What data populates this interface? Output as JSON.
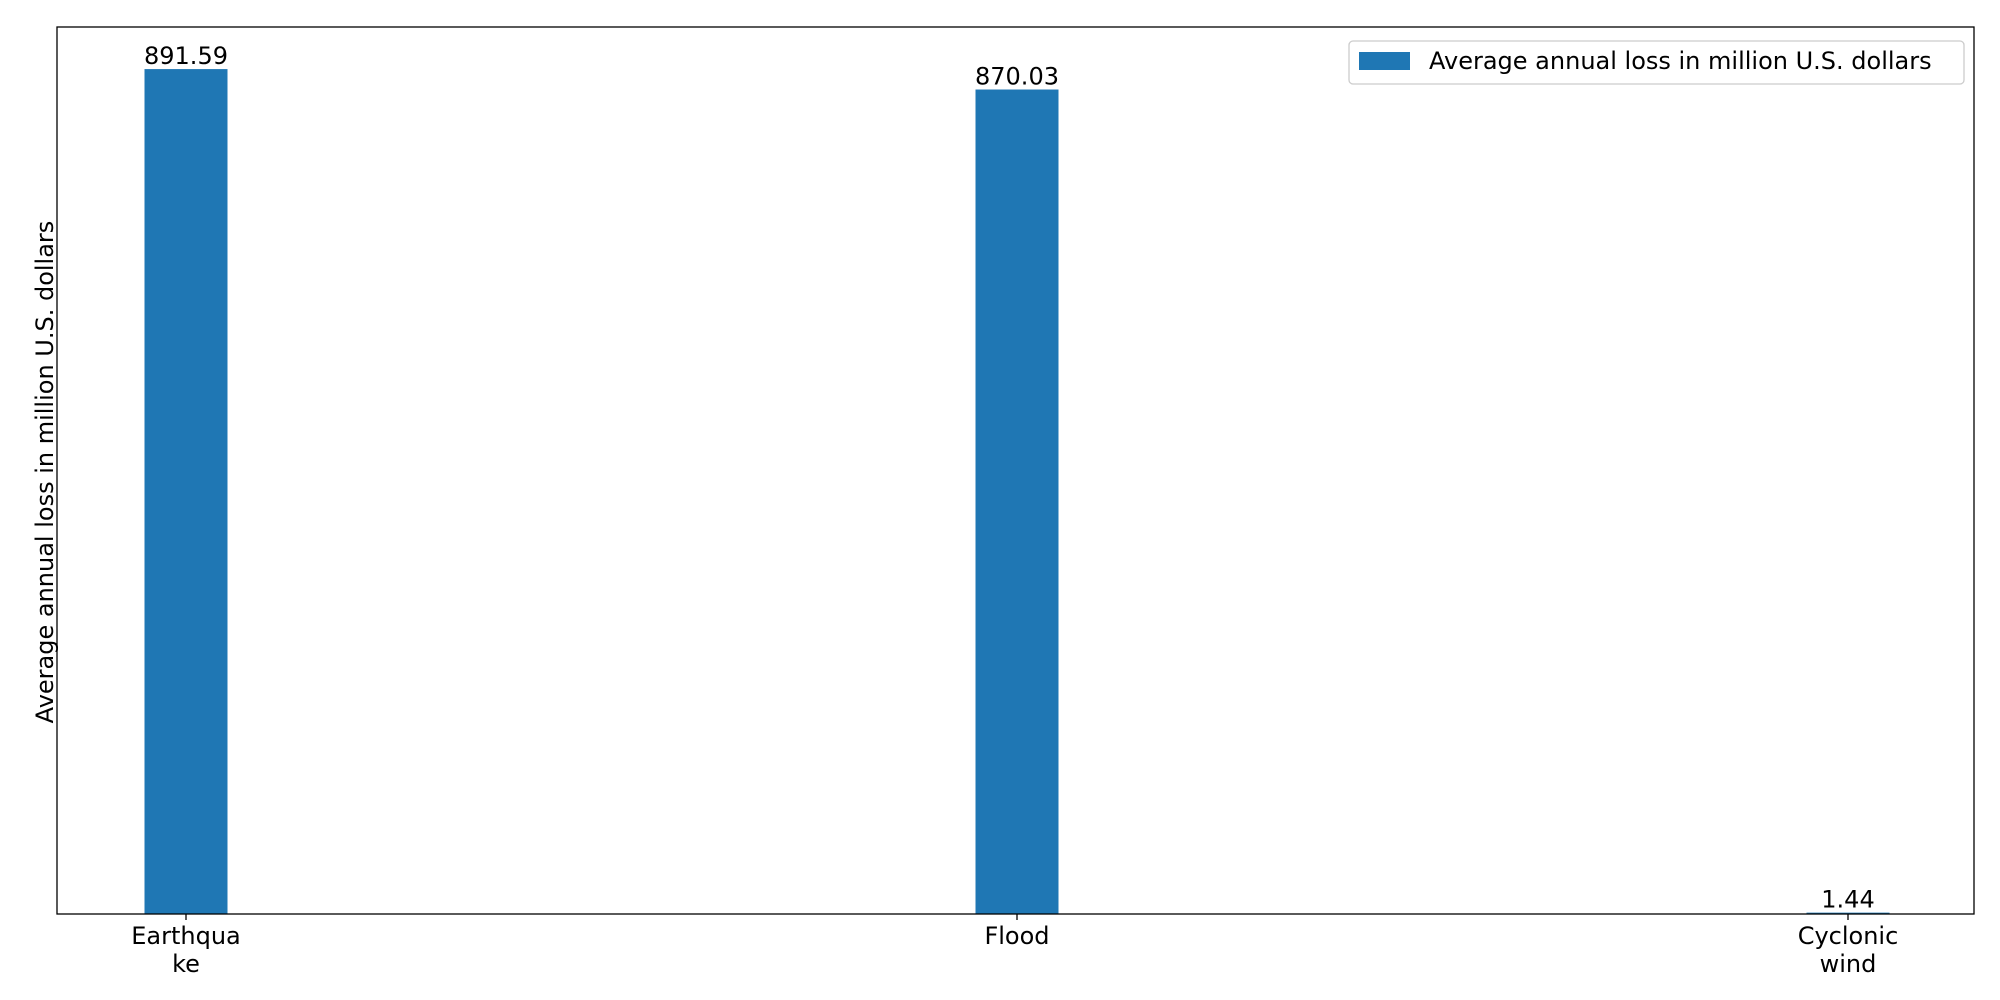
{
  "chart_data": {
    "type": "bar",
    "categories": [
      [
        "Earthqua",
        "ke"
      ],
      [
        "Flood"
      ],
      [
        "Cyclonic",
        "wind"
      ]
    ],
    "series": [
      {
        "name": "Average annual loss in million U.S. dollars",
        "values": [
          891.59,
          870.03,
          1.44
        ],
        "value_labels": [
          "891.59",
          "870.03",
          "1.44"
        ],
        "color": "#1f77b4"
      }
    ],
    "title": "",
    "xlabel": "",
    "ylabel": "Average annual loss in million U.S. dollars",
    "ylim": [
      0,
      936
    ],
    "y_ticks_shown": false,
    "grid": false,
    "legend_position": "top-right"
  }
}
